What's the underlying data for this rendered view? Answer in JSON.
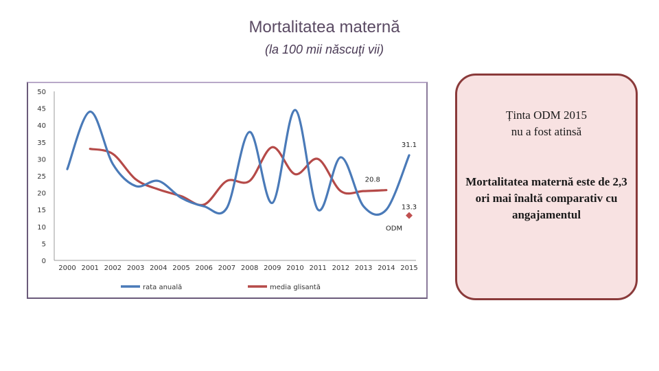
{
  "page": {
    "title": "Mortalitatea maternă",
    "subtitle": "(la 100 mii născuţi vii)"
  },
  "callout": {
    "line1": "Ținta ODM 2015",
    "line2": "nu a fost atinsă",
    "body": "Mortalitatea maternă este de 2,3 ori mai înaltă comparativ cu angajamentul"
  },
  "chart_data": {
    "type": "line",
    "title": "",
    "xlabel": "",
    "ylabel": "",
    "categories": [
      "2000",
      "2001",
      "2002",
      "2003",
      "2004",
      "2005",
      "2006",
      "2007",
      "2008",
      "2009",
      "2010",
      "2011",
      "2012",
      "2013",
      "2014",
      "2015"
    ],
    "yticks": [
      "0",
      "5",
      "10",
      "15",
      "20",
      "25",
      "30",
      "35",
      "40",
      "45",
      "50"
    ],
    "ylim": [
      0,
      50
    ],
    "series": [
      {
        "name": "rata anuală",
        "color": "#4a7ab8",
        "values": [
          27,
          44,
          28.5,
          22,
          23.5,
          18.5,
          16,
          15.5,
          38,
          17,
          44.5,
          15,
          30.5,
          16,
          15,
          31.1
        ]
      },
      {
        "name": "media glisantă",
        "color": "#b54a48",
        "values": [
          null,
          33,
          31.5,
          24,
          21,
          19,
          16.5,
          23.5,
          23.5,
          33.5,
          25.5,
          30,
          20.5,
          20.5,
          20.8,
          null
        ]
      }
    ],
    "target": {
      "label": "ODM",
      "year": "2015",
      "value": 13.3,
      "value_label": "13.3",
      "color": "#c05050"
    },
    "data_labels": [
      {
        "text": "31.1",
        "year": "2015",
        "value": 31.1
      },
      {
        "text": "20.8",
        "year": "2014",
        "value": 20.8
      }
    ],
    "legend": [
      "rata anuală",
      "media glisantă"
    ],
    "legend_position": "bottom",
    "grid": false
  }
}
